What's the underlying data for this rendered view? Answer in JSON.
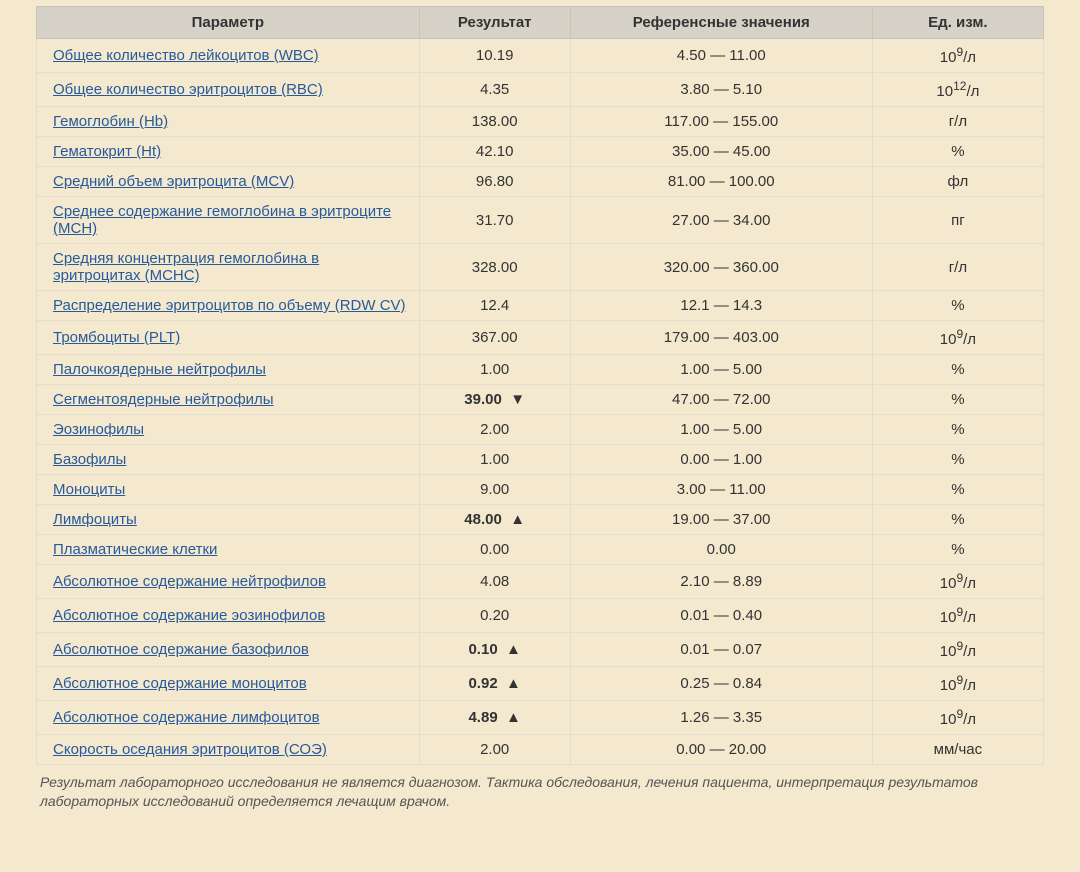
{
  "table": {
    "columns": [
      {
        "label": "Параметр",
        "width": "38%",
        "class": "param"
      },
      {
        "label": "Результат",
        "width": "15%"
      },
      {
        "label": "Референсные значения",
        "width": "30%"
      },
      {
        "label": "Ед. изм.",
        "width": "17%",
        "class": "unit"
      }
    ],
    "rows": [
      {
        "param": "Общее количество лейкоцитов (WBC)",
        "result": "10.19",
        "flag": "",
        "ref": "4.50 — 11.00",
        "unit": "10<sup>9</sup>/л"
      },
      {
        "param": "Общее количество эритроцитов (RBC)",
        "result": "4.35",
        "flag": "",
        "ref": "3.80 — 5.10",
        "unit": "10<sup>12</sup>/л"
      },
      {
        "param": "Гемоглобин (Hb)",
        "result": "138.00",
        "flag": "",
        "ref": "117.00 — 155.00",
        "unit": "г/л"
      },
      {
        "param": "Гематокрит (Ht)",
        "result": "42.10",
        "flag": "",
        "ref": "35.00 — 45.00",
        "unit": "%"
      },
      {
        "param": "Средний объем эритроцита (MCV)",
        "result": "96.80",
        "flag": "",
        "ref": "81.00 — 100.00",
        "unit": "фл"
      },
      {
        "param": "Среднее содержание гемоглобина в эритроците (MCH)",
        "result": "31.70",
        "flag": "",
        "ref": "27.00 — 34.00",
        "unit": "пг"
      },
      {
        "param": "Средняя концентрация гемоглобина в эритроцитах (MCHC)",
        "result": "328.00",
        "flag": "",
        "ref": "320.00 — 360.00",
        "unit": "г/л"
      },
      {
        "param": "Распределение эритроцитов по объему (RDW CV)",
        "result": "12.4",
        "flag": "",
        "ref": "12.1 — 14.3",
        "unit": "%"
      },
      {
        "param": "Тромбоциты (PLT)",
        "result": "367.00",
        "flag": "",
        "ref": "179.00 — 403.00",
        "unit": "10<sup>9</sup>/л"
      },
      {
        "param": "Палочкоядерные нейтрофилы",
        "result": "1.00",
        "flag": "",
        "ref": "1.00 — 5.00",
        "unit": "%"
      },
      {
        "param": "Сегментоядерные нейтрофилы",
        "result": "39.00",
        "flag": "▼",
        "ref": "47.00 — 72.00",
        "unit": "%"
      },
      {
        "param": "Эозинофилы",
        "result": "2.00",
        "flag": "",
        "ref": "1.00 — 5.00",
        "unit": "%"
      },
      {
        "param": "Базофилы",
        "result": "1.00",
        "flag": "",
        "ref": "0.00 — 1.00",
        "unit": "%"
      },
      {
        "param": "Моноциты",
        "result": "9.00",
        "flag": "",
        "ref": "3.00 — 11.00",
        "unit": "%"
      },
      {
        "param": "Лимфоциты",
        "result": "48.00",
        "flag": "▲",
        "ref": "19.00 — 37.00",
        "unit": "%"
      },
      {
        "param": "Плазматические клетки",
        "result": "0.00",
        "flag": "",
        "ref": "0.00",
        "unit": "%"
      },
      {
        "param": "Абсолютное содержание нейтрофилов",
        "result": "4.08",
        "flag": "",
        "ref": "2.10 — 8.89",
        "unit": "10<sup>9</sup>/л"
      },
      {
        "param": "Абсолютное содержание эозинофилов",
        "result": "0.20",
        "flag": "",
        "ref": "0.01 — 0.40",
        "unit": "10<sup>9</sup>/л"
      },
      {
        "param": "Абсолютное содержание базофилов",
        "result": "0.10",
        "flag": "▲",
        "ref": "0.01 — 0.07",
        "unit": "10<sup>9</sup>/л"
      },
      {
        "param": "Абсолютное содержание моноцитов",
        "result": "0.92",
        "flag": "▲",
        "ref": "0.25 — 0.84",
        "unit": "10<sup>9</sup>/л"
      },
      {
        "param": "Абсолютное содержание лимфоцитов",
        "result": "4.89",
        "flag": "▲",
        "ref": "1.26 — 3.35",
        "unit": "10<sup>9</sup>/л"
      },
      {
        "param": "Скорость оседания эритроцитов (СОЭ)",
        "result": "2.00",
        "flag": "",
        "ref": "0.00 — 20.00",
        "unit": "мм/час"
      }
    ]
  },
  "footnote": "Результат лабораторного исследования не является диагнозом. Тактика обследования, лечения пациента, интерпретация результатов лабораторных исследований определяется лечащим врачом."
}
